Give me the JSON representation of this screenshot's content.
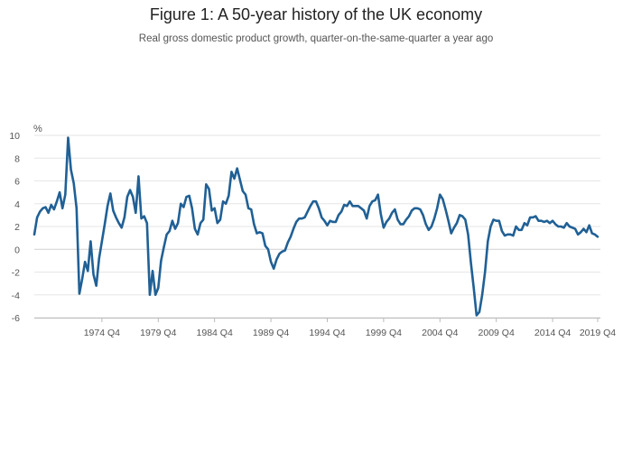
{
  "title": "Figure 1: A 50-year history of the UK economy",
  "subtitle": "Real gross domestic product growth, quarter-on-the-same-quarter a year ago",
  "chart_data": {
    "type": "line",
    "title": "Figure 1: A 50-year history of the UK economy",
    "subtitle": "Real gross domestic product growth, quarter-on-the-same-quarter a year ago",
    "ylabel": "%",
    "xlabel": "",
    "ylim": [
      -6,
      10
    ],
    "yticks": [
      -6,
      -4,
      -2,
      0,
      2,
      4,
      6,
      8,
      10
    ],
    "xticks": [
      "1974 Q4",
      "1979 Q4",
      "1984 Q4",
      "1989 Q4",
      "1994 Q4",
      "1999 Q4",
      "2004 Q4",
      "2009 Q4",
      "2014 Q4",
      "2019 Q4"
    ],
    "grid": true,
    "line_color": "#206095",
    "series": [
      {
        "values": [
          1.3,
          2.8,
          3.3,
          3.6,
          3.7,
          3.2,
          3.9,
          3.5,
          4.2,
          5.0,
          3.6,
          4.8,
          9.8,
          7.0,
          5.8,
          3.6,
          -3.9,
          -2.6,
          -1.1,
          -1.9,
          0.7,
          -2.2,
          -3.2,
          -0.8,
          0.7,
          2.2,
          3.8,
          4.9,
          3.4,
          2.8,
          2.3,
          1.9,
          2.8,
          4.6,
          5.2,
          4.6,
          3.2,
          6.4,
          2.7,
          2.9,
          2.3,
          -4.0,
          -1.9,
          -4.0,
          -3.4,
          -1.0,
          0.2,
          1.3,
          1.6,
          2.5,
          1.8,
          2.3,
          4.0,
          3.7,
          4.6,
          4.7,
          3.6,
          1.8,
          1.3,
          2.3,
          2.6,
          5.7,
          5.3,
          3.4,
          3.6,
          2.3,
          2.6,
          4.2,
          4.0,
          4.7,
          6.8,
          6.2,
          7.1,
          6.1,
          5.1,
          4.8,
          3.6,
          3.5,
          2.2,
          1.4,
          1.5,
          1.4,
          0.3,
          0.0,
          -1.1,
          -1.7,
          -0.9,
          -0.4,
          -0.2,
          -0.1,
          0.6,
          1.1,
          1.8,
          2.4,
          2.7,
          2.7,
          2.8,
          3.3,
          3.8,
          4.2,
          4.2,
          3.6,
          2.8,
          2.5,
          2.1,
          2.5,
          2.4,
          2.4,
          3.0,
          3.3,
          3.9,
          3.8,
          4.2,
          3.8,
          3.8,
          3.8,
          3.6,
          3.4,
          2.7,
          3.8,
          4.2,
          4.3,
          4.8,
          3.1,
          1.9,
          2.4,
          2.7,
          3.2,
          3.5,
          2.6,
          2.2,
          2.2,
          2.6,
          2.9,
          3.4,
          3.6,
          3.6,
          3.5,
          3.0,
          2.2,
          1.7,
          2.0,
          2.7,
          3.6,
          4.8,
          4.4,
          3.5,
          2.5,
          1.4,
          1.9,
          2.3,
          3.0,
          2.9,
          2.6,
          1.3,
          -1.2,
          -3.4,
          -5.8,
          -5.5,
          -4.0,
          -2.0,
          0.7,
          2.0,
          2.6,
          2.5,
          2.5,
          1.6,
          1.2,
          1.3,
          1.3,
          1.2,
          2.0,
          1.7,
          1.7,
          2.3,
          2.1,
          2.8,
          2.8,
          2.9,
          2.5,
          2.5,
          2.4,
          2.5,
          2.3,
          2.5,
          2.2,
          2.0,
          2.0,
          1.9,
          2.3,
          2.0,
          1.9,
          1.8,
          1.3,
          1.5,
          1.8,
          1.5,
          2.1,
          1.4,
          1.3,
          1.1
        ]
      }
    ]
  }
}
